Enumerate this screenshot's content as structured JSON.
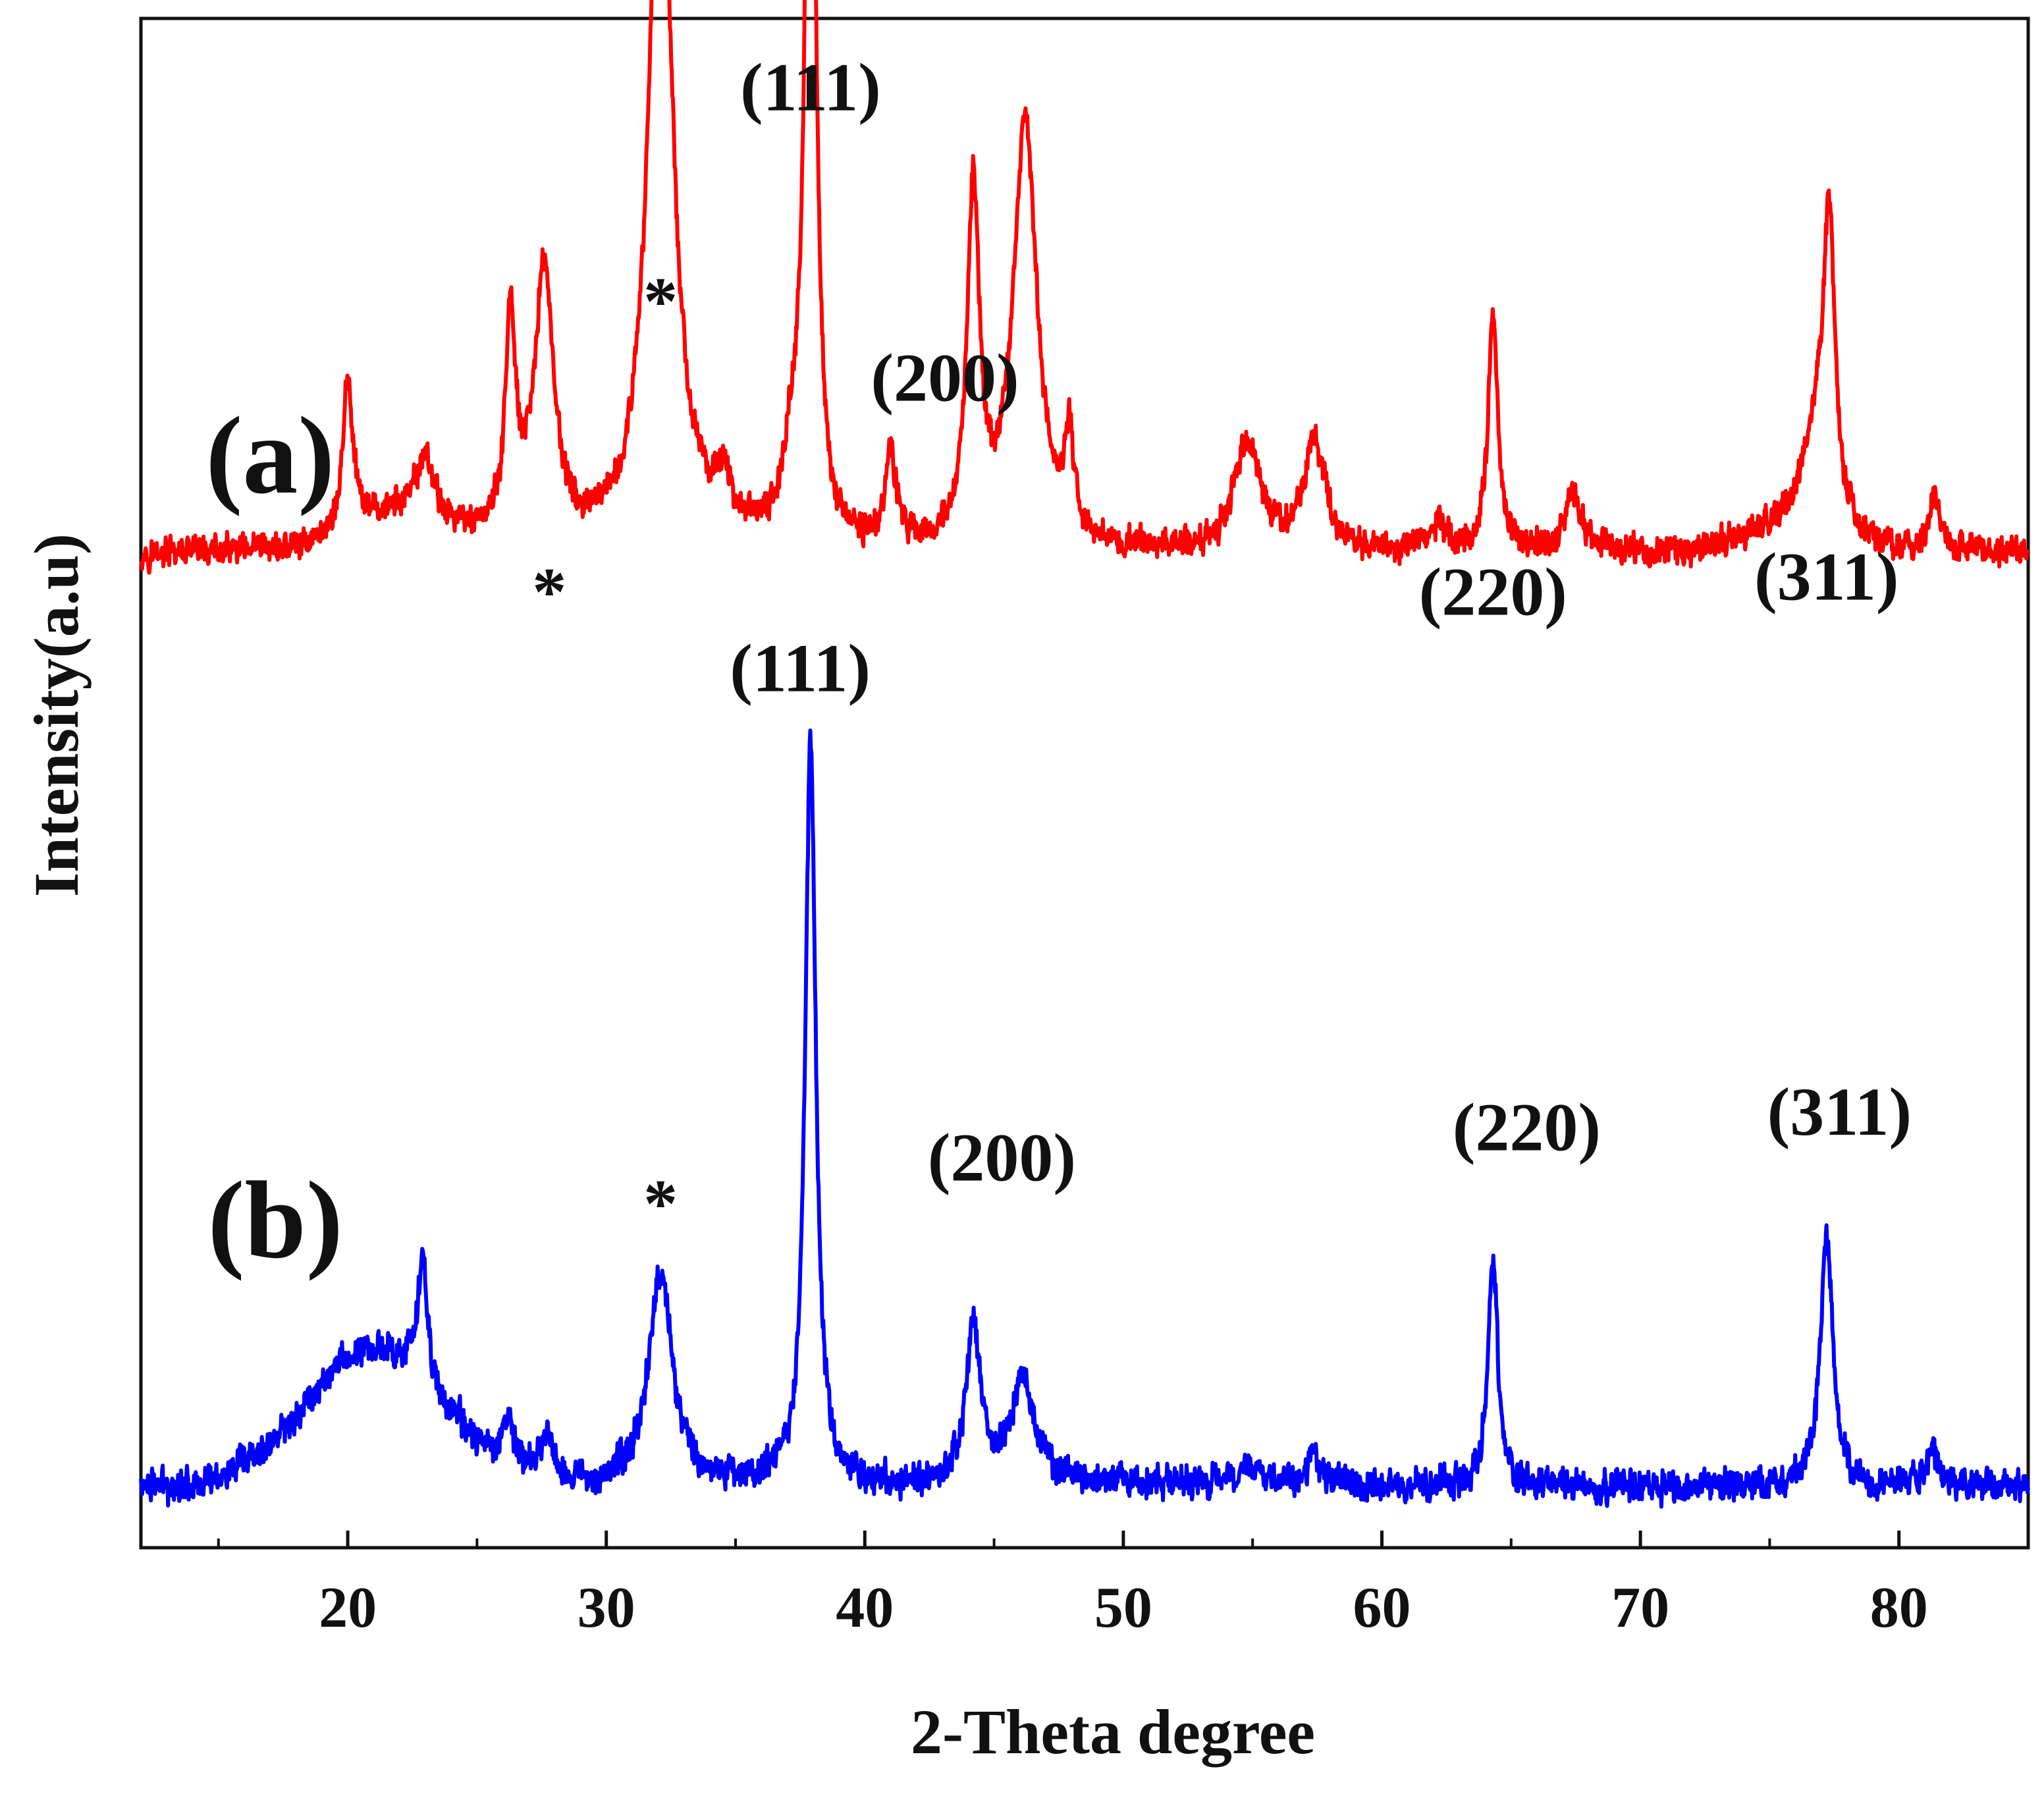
{
  "chart_data": {
    "type": "line",
    "title": "",
    "xlabel": "2-Theta degree",
    "ylabel": "Intensity(a.u)",
    "xlim": [
      12,
      85
    ],
    "xticks": [
      20,
      30,
      40,
      50,
      60,
      70,
      80
    ],
    "ylim": [
      0,
      100
    ],
    "grid": false,
    "series": [
      {
        "name": "(a)",
        "color": "#ff0000",
        "baseline": 65,
        "noise": 1.3,
        "broad_humps": [
          {
            "center": 22,
            "height": 2.5,
            "width": 2.0
          },
          {
            "center": 75.5,
            "height": 1.5,
            "width": 1.5
          }
        ],
        "peaks": [
          {
            "x": 20.0,
            "height": 10,
            "width": 0.22
          },
          {
            "x": 23.0,
            "height": 4,
            "width": 0.35
          },
          {
            "x": 26.3,
            "height": 14,
            "width": 0.25
          },
          {
            "x": 27.6,
            "height": 18,
            "width": 0.45
          },
          {
            "x": 32.1,
            "height": 50,
            "width": 0.55
          },
          {
            "x": 34.5,
            "height": 3,
            "width": 0.5
          },
          {
            "x": 37.2,
            "height": 5,
            "width": 0.4
          },
          {
            "x": 37.9,
            "height": 68,
            "width": 0.22
          },
          {
            "x": 41.0,
            "height": 6,
            "width": 0.25
          },
          {
            "x": 44.2,
            "height": 23,
            "width": 0.28
          },
          {
            "x": 46.2,
            "height": 28,
            "width": 0.55
          },
          {
            "x": 47.9,
            "height": 6,
            "width": 0.22
          },
          {
            "x": 54.8,
            "height": 7,
            "width": 0.6
          },
          {
            "x": 57.4,
            "height": 7,
            "width": 0.5
          },
          {
            "x": 62.2,
            "height": 2,
            "width": 0.3
          },
          {
            "x": 64.3,
            "height": 16,
            "width": 0.22
          },
          {
            "x": 67.4,
            "height": 3.5,
            "width": 0.4
          },
          {
            "x": 76.8,
            "height": 6,
            "width": 0.6
          },
          {
            "x": 77.3,
            "height": 19,
            "width": 0.28
          },
          {
            "x": 81.4,
            "height": 4,
            "width": 0.22
          }
        ]
      },
      {
        "name": "(b)",
        "color": "#0000ff",
        "baseline": 4,
        "noise": 1.4,
        "broad_humps": [
          {
            "center": 21,
            "height": 9,
            "width": 2.6
          }
        ],
        "peaks": [
          {
            "x": 22.9,
            "height": 8,
            "width": 0.22
          },
          {
            "x": 26.2,
            "height": 3,
            "width": 0.3
          },
          {
            "x": 27.7,
            "height": 3,
            "width": 0.3
          },
          {
            "x": 32.1,
            "height": 14,
            "width": 0.55
          },
          {
            "x": 37.9,
            "height": 49,
            "width": 0.25
          },
          {
            "x": 44.2,
            "height": 10,
            "width": 0.35
          },
          {
            "x": 46.1,
            "height": 7,
            "width": 0.55
          },
          {
            "x": 54.8,
            "height": 1.5,
            "width": 0.6
          },
          {
            "x": 57.3,
            "height": 1.5,
            "width": 0.5
          },
          {
            "x": 64.3,
            "height": 15,
            "width": 0.22
          },
          {
            "x": 77.2,
            "height": 16,
            "width": 0.3
          },
          {
            "x": 81.3,
            "height": 2.5,
            "width": 0.25
          }
        ]
      }
    ],
    "annotations": [
      {
        "text": "(111)",
        "x": 37.9,
        "y": 94,
        "series": "(a)"
      },
      {
        "text": "*",
        "x": 32.1,
        "y": 80,
        "series": "(a)"
      },
      {
        "text": "*",
        "x": 27.8,
        "y": 61,
        "series": "(a)"
      },
      {
        "text": "(200)",
        "x": 43.1,
        "y": 75,
        "series": "(a)"
      },
      {
        "text": "(220)",
        "x": 64.3,
        "y": 61,
        "series": "(a)"
      },
      {
        "text": "(311)",
        "x": 77.2,
        "y": 62,
        "series": "(a)"
      },
      {
        "text": "(111)",
        "x": 37.5,
        "y": 56,
        "series": "(b)"
      },
      {
        "text": "*",
        "x": 32.1,
        "y": 21,
        "series": "(b)"
      },
      {
        "text": "(200)",
        "x": 45.3,
        "y": 24,
        "series": "(b)"
      },
      {
        "text": "(220)",
        "x": 65.6,
        "y": 26,
        "series": "(b)"
      },
      {
        "text": "(311)",
        "x": 77.7,
        "y": 27,
        "series": "(b)"
      }
    ],
    "series_labels": [
      {
        "text": "(a)",
        "x": 17.0,
        "y": 69
      },
      {
        "text": "(b)",
        "x": 17.2,
        "y": 19
      }
    ]
  }
}
